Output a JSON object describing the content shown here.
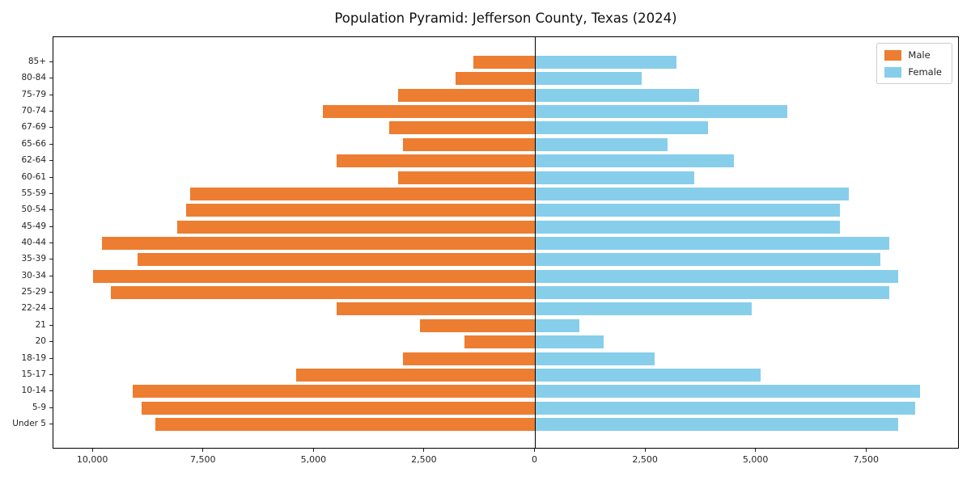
{
  "chart_data": {
    "type": "bar",
    "variant": "population-pyramid",
    "title": "Population Pyramid: Jefferson County, Texas (2024)",
    "categories": [
      "85+",
      "80-84",
      "75-79",
      "70-74",
      "67-69",
      "65-66",
      "62-64",
      "60-61",
      "55-59",
      "50-54",
      "45-49",
      "40-44",
      "35-39",
      "30-34",
      "25-29",
      "22-24",
      "21",
      "20",
      "18-19",
      "15-17",
      "10-14",
      "5-9",
      "Under 5"
    ],
    "series": [
      {
        "name": "Male",
        "color": "#ED7D31",
        "values": [
          1400,
          1800,
          3100,
          4800,
          3300,
          3000,
          4500,
          3100,
          7800,
          7900,
          8100,
          9800,
          9000,
          10000,
          9600,
          4500,
          2600,
          1600,
          3000,
          5400,
          9100,
          8900,
          8600
        ]
      },
      {
        "name": "Female",
        "color": "#87CEEB",
        "values": [
          3200,
          2400,
          3700,
          5700,
          3900,
          3000,
          4500,
          3600,
          7100,
          6900,
          6900,
          8000,
          7800,
          8200,
          8000,
          4900,
          1000,
          1550,
          2700,
          5100,
          8700,
          8600,
          8200
        ]
      }
    ],
    "xlim": [
      -10900,
      9600
    ],
    "xticks": [
      -10000,
      -7500,
      -5000,
      -2500,
      0,
      2500,
      5000,
      7500
    ],
    "xtick_labels": [
      "10,000",
      "7,500",
      "5,000",
      "2,500",
      "0",
      "2,500",
      "5,000",
      "7,500"
    ],
    "legend_position": "upper right",
    "grid": false
  }
}
